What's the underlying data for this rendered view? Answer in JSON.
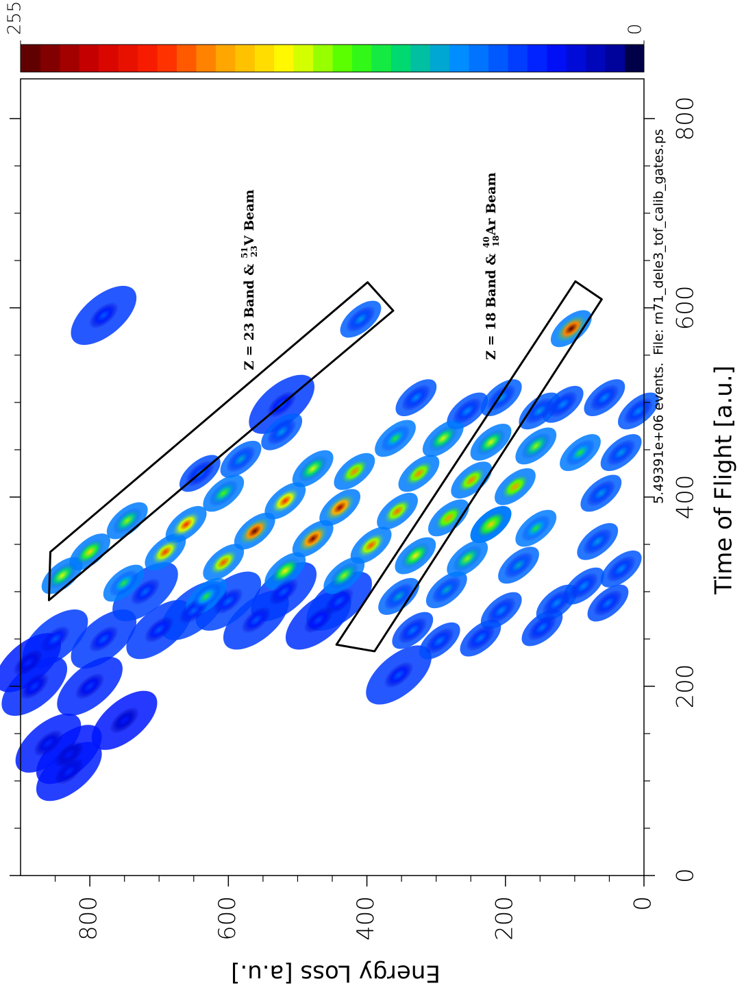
{
  "chart_data": {
    "type": "density",
    "x_label": "Time of Flight [a.u.]",
    "y_label": "Energy Loss [a.u.]",
    "xlim": [
      0,
      842
    ],
    "ylim": [
      0,
      900
    ],
    "xticks": [
      0,
      200,
      400,
      600,
      800
    ],
    "yticks": [
      0,
      200,
      400,
      600,
      800
    ],
    "xminorticks": [
      50,
      100,
      150,
      250,
      300,
      350,
      450,
      500,
      550,
      650,
      700,
      750
    ],
    "yminorticks": [
      50,
      100,
      150,
      250,
      300,
      350,
      450,
      500,
      550,
      650,
      700,
      750,
      850
    ],
    "clim": [
      0,
      255
    ],
    "cticks": [
      0,
      255
    ],
    "colorscale": [
      [
        0,
        "#000000"
      ],
      [
        0.03,
        "#00008c"
      ],
      [
        0.15,
        "#0010ff"
      ],
      [
        0.3,
        "#0090ff"
      ],
      [
        0.4,
        "#00e060"
      ],
      [
        0.47,
        "#40ff00"
      ],
      [
        0.57,
        "#ffff00"
      ],
      [
        0.68,
        "#ffa000"
      ],
      [
        0.78,
        "#ff2000"
      ],
      [
        0.88,
        "#d00000"
      ],
      [
        1,
        "#500000"
      ]
    ],
    "x": [
      250,
      250,
      260,
      280,
      270,
      270,
      200,
      200,
      140,
      110,
      300,
      290,
      300,
      290,
      225,
      128,
      164,
      425,
      498,
      212,
      592,
      262,
      288,
      248,
      259,
      251,
      280,
      306,
      288,
      353,
      324,
      404,
      447,
      491,
      505,
      498,
      491,
      505,
      491,
      505,
      588,
      469,
      440,
      328,
      302,
      295,
      295,
      309,
      367,
      447,
      375,
      462,
      404,
      317,
      335,
      338,
      378,
      371,
      454,
      458,
      462,
      430,
      342,
      322,
      317,
      371,
      331,
      342,
      385,
      349,
      425,
      427,
      418,
      411,
      396,
      371,
      389,
      356,
      364,
      578
    ],
    "y": [
      850,
      780,
      700,
      650,
      560,
      470,
      800,
      880,
      860,
      830,
      720,
      600,
      520,
      440,
      889,
      830,
      750,
      641,
      523,
      354,
      780,
      147,
      52,
      295,
      334,
      236,
      206,
      87,
      126,
      67,
      33,
      62,
      33,
      8,
      57,
      117,
      151,
      206,
      255,
      329,
      409,
      523,
      582,
      181,
      285,
      354,
      632,
      751,
      156,
      92,
      746,
      359,
      607,
      433,
      255,
      330,
      282,
      221,
      156,
      221,
      290,
      478,
      800,
      518,
      840,
      661,
      607,
      691,
      356,
      394,
      325,
      418,
      249,
      186,
      518,
      221,
      439,
      478,
      562,
      105
    ],
    "z": [
      60,
      60,
      60,
      65,
      60,
      55,
      50,
      50,
      45,
      45,
      65,
      65,
      60,
      60,
      45,
      40,
      40,
      70,
      60,
      60,
      60,
      70,
      70,
      70,
      70,
      70,
      75,
      75,
      75,
      80,
      75,
      80,
      80,
      75,
      75,
      75,
      80,
      80,
      75,
      75,
      80,
      80,
      85,
      85,
      85,
      85,
      110,
      110,
      110,
      110,
      130,
      110,
      120,
      130,
      130,
      150,
      175,
      160,
      130,
      140,
      140,
      140,
      155,
      150,
      140,
      200,
      190,
      195,
      185,
      190,
      180,
      180,
      180,
      175,
      200,
      160,
      240,
      245,
      250,
      255
    ],
    "gates": [
      {
        "x": [
          291,
          342,
          627,
          597
        ],
        "y": [
          859,
          857,
          399,
          362
        ]
      },
      {
        "x": [
          628,
          609,
          237,
          244
        ],
        "y": [
          99,
          61,
          389,
          444
        ]
      }
    ],
    "annotations": [
      {
        "prefix": "Z = 23 Band &",
        "mass": "51",
        "charge": "23",
        "suffix": "V Beam"
      },
      {
        "prefix": "Z = 18 Band &",
        "mass": "40",
        "charge": "18",
        "suffix": "Ar Beam"
      }
    ],
    "events": "5.49391e+06 events.",
    "file": "File: rn71_dele3_tof_calib_gates.ps"
  }
}
